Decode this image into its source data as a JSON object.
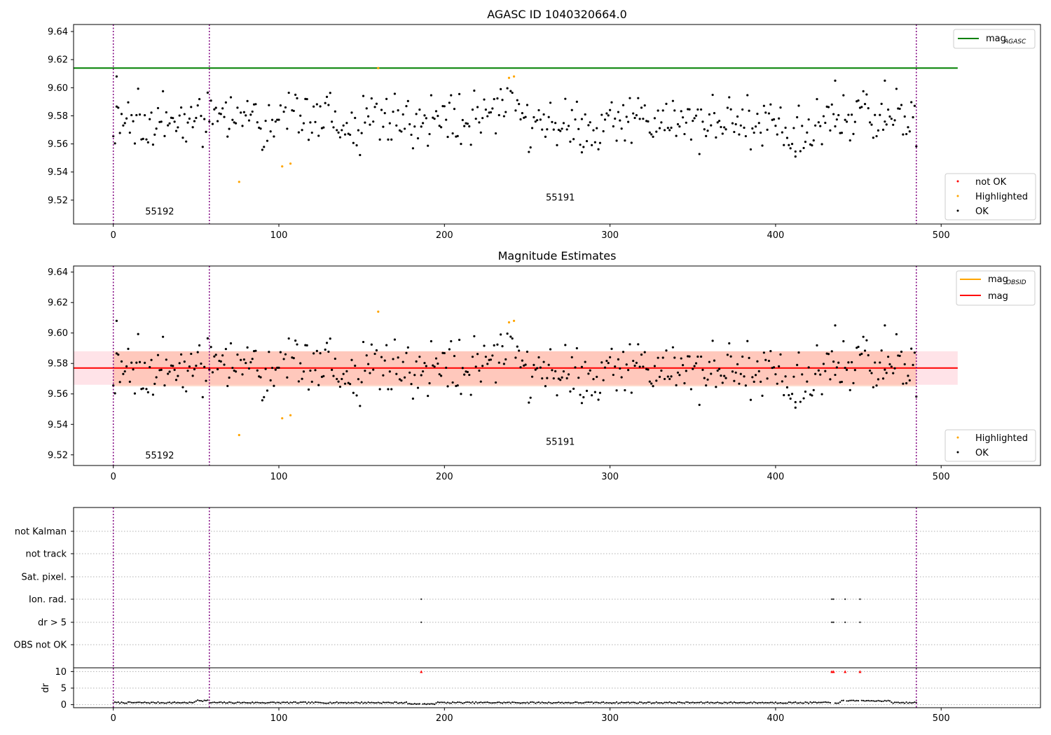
{
  "chart_data": [
    {
      "type": "scatter",
      "title": "AGASC ID 1040320664.0",
      "xlim": [
        -24,
        560
      ],
      "ylim": [
        9.503,
        9.645
      ],
      "xticks": [
        0,
        100,
        200,
        300,
        400,
        500
      ],
      "yticks": [
        9.52,
        9.54,
        9.56,
        9.58,
        9.6,
        9.62,
        9.64
      ],
      "obs_boundaries": [
        0,
        58,
        485
      ],
      "obs_labels": [
        {
          "text": "55192",
          "x": 28,
          "y": 9.5097
        },
        {
          "text": "55191",
          "x": 270,
          "y": 9.5196
        }
      ],
      "mag_agasc": 9.614,
      "mag_agasc_x": [
        -24,
        510
      ],
      "highlighted": [
        [
          76,
          9.533
        ],
        [
          102,
          9.544
        ],
        [
          107,
          9.546
        ],
        [
          160,
          9.614
        ],
        [
          239,
          9.607
        ],
        [
          242,
          9.608
        ]
      ],
      "legend_top": {
        "label": "mag",
        "sub": "AGASC"
      },
      "legend_bottom": [
        "not OK",
        "Highlighted",
        "OK"
      ]
    },
    {
      "type": "scatter",
      "title": "Magnitude Estimates",
      "xlim": [
        -24,
        560
      ],
      "ylim": [
        9.513,
        9.644
      ],
      "xticks": [
        0,
        100,
        200,
        300,
        400,
        500
      ],
      "yticks": [
        9.52,
        9.54,
        9.56,
        9.58,
        9.6,
        9.62,
        9.64
      ],
      "obs_boundaries": [
        0,
        58,
        485
      ],
      "obs_labels": [
        {
          "text": "55192",
          "x": 28,
          "y": 9.5175
        },
        {
          "text": "55191",
          "x": 270,
          "y": 9.5265
        }
      ],
      "mag": 9.577,
      "mag_band": [
        9.566,
        9.588
      ],
      "mag_x": [
        -24,
        510
      ],
      "mag_obsid_band": [
        9.565,
        9.588
      ],
      "mag_obsid_x": [
        0,
        485
      ],
      "highlighted": [
        [
          76,
          9.533
        ],
        [
          102,
          9.544
        ],
        [
          107,
          9.546
        ],
        [
          160,
          9.614
        ],
        [
          239,
          9.607
        ],
        [
          242,
          9.608
        ]
      ],
      "legend_top": [
        {
          "label": "mag",
          "sub": "OBSID"
        },
        {
          "label": "mag",
          "sub": ""
        }
      ],
      "legend_bottom": [
        "Highlighted",
        "OK"
      ]
    },
    {
      "type": "scatter",
      "title": "",
      "xlim": [
        -24,
        560
      ],
      "flag_rows": [
        "not Kalman",
        "not track",
        "Sat. pixel.",
        "Ion. rad.",
        "dr > 5",
        "OBS not OK"
      ],
      "flag_points": {
        "Ion. rad.": [
          186,
          434,
          435,
          442,
          451
        ],
        "dr > 5": [
          186,
          434,
          435,
          442,
          451
        ]
      },
      "dr_ylabel": "dr",
      "dr_yticks": [
        0,
        5,
        10
      ],
      "dr_ylim": [
        -0.5,
        10.5
      ],
      "dr_outliers": [
        186,
        434,
        435,
        442,
        451
      ],
      "xticks": [
        0,
        100,
        200,
        300,
        400,
        500
      ],
      "obs_boundaries": [
        0,
        58,
        485
      ]
    }
  ],
  "colors": {
    "ok": "#000000",
    "highlighted": "#ffa500",
    "not_ok": "#ff0000",
    "agasc_line": "#008000",
    "mag_line": "#ff0000",
    "mag_obsid_line": "#ffa500",
    "mag_band": "#ffc0cb",
    "mag_obsid_band": "#ffa07a",
    "boundary": "#800080"
  }
}
